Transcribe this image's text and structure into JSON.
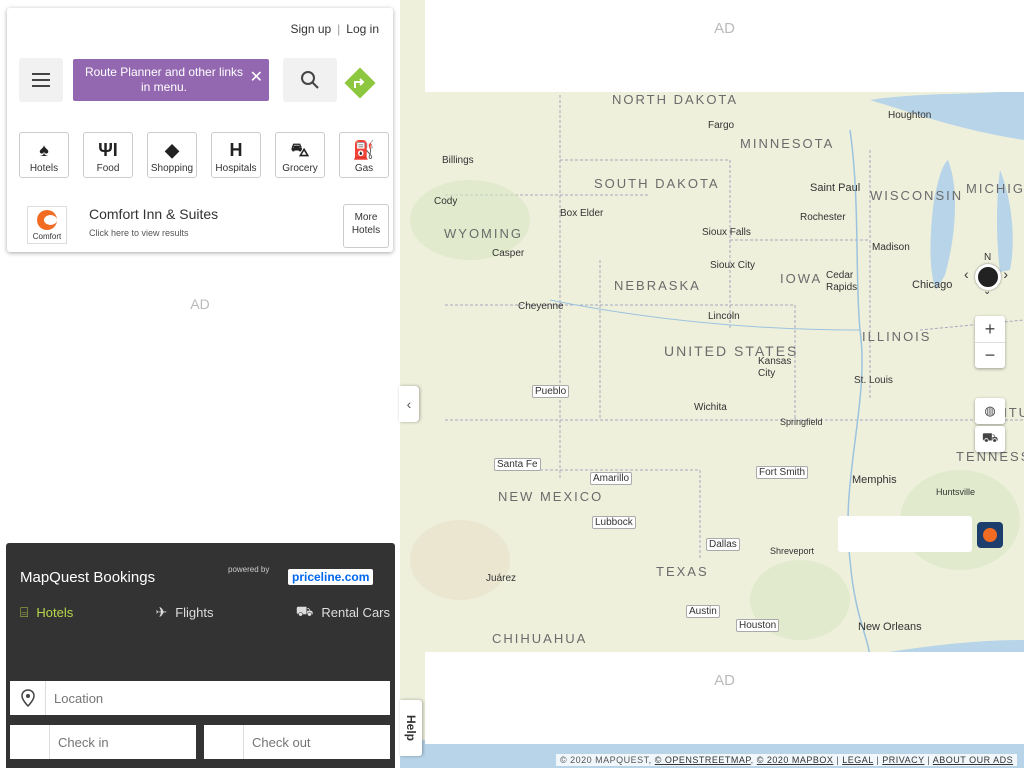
{
  "header": {
    "sign_up": "Sign up",
    "log_in": "Log in",
    "separator": "|"
  },
  "menu": {
    "tooltip": "Route Planner and other links in menu."
  },
  "categories": [
    {
      "label": "Hotels",
      "icon": "lamp-icon"
    },
    {
      "label": "Food",
      "icon": "fork-knife-icon"
    },
    {
      "label": "Shopping",
      "icon": "tag-icon"
    },
    {
      "label": "Hospitals",
      "icon": "hospital-icon"
    },
    {
      "label": "Grocery",
      "icon": "cart-icon"
    },
    {
      "label": "Gas",
      "icon": "gas-pump-icon"
    }
  ],
  "promo": {
    "logo_text": "Comfort",
    "title": "Comfort Inn & Suites",
    "subtitle": "Click here to view results",
    "more_hotels": "More Hotels"
  },
  "ads": {
    "label": "AD"
  },
  "bookings": {
    "title": "MapQuest Bookings",
    "powered_by": "powered by",
    "partner": "priceline.com",
    "tabs": [
      {
        "label": "Hotels",
        "icon": "bed-icon"
      },
      {
        "label": "Flights",
        "icon": "plane-icon"
      },
      {
        "label": "Rental Cars",
        "icon": "car-icon"
      }
    ],
    "location_placeholder": "Location",
    "check_in_placeholder": "Check in",
    "check_out_placeholder": "Check out"
  },
  "map": {
    "states": [
      "NORTH DAKOTA",
      "MINNESOTA",
      "SOUTH DAKOTA",
      "WISCONSIN",
      "WYOMING",
      "NEBRASKA",
      "IOWA",
      "ILLINOIS",
      "UNITED STATES",
      "NEW MEXICO",
      "TEXAS",
      "CHIHUAHUA",
      "KENTUCKY",
      "TENNESSEE",
      "MICHIGAN"
    ],
    "cities": [
      "Fargo",
      "Houghton",
      "Billings",
      "Saint Paul",
      "Cody",
      "Box Elder",
      "Rochester",
      "Sioux Falls",
      "Madison",
      "Casper",
      "Sioux City",
      "Cedar Rapids",
      "Chicago",
      "Cheyenne",
      "Lincoln",
      "Kansas City",
      "St. Louis",
      "Wichita",
      "Springfield",
      "Memphis",
      "Huntsville",
      "Shreveport",
      "Juárez",
      "New Orleans"
    ],
    "links": [
      "Pueblo",
      "Santa Fe",
      "Amarillo",
      "Fort Smith",
      "Lubbock",
      "Dallas",
      "Austin",
      "Houston"
    ],
    "compass_n": "N",
    "zoom_in": "+",
    "zoom_out": "−"
  },
  "help": "Help",
  "attribution": {
    "copy": "© 2020 MAPQUEST,",
    "osm": "© OPENSTREETMAP",
    "mapbox": "© 2020 MAPBOX",
    "legal": "LEGAL",
    "privacy": "PRIVACY",
    "ads": "ABOUT OUR ADS"
  },
  "colors": {
    "accent": "#b8d84a",
    "tooltip": "#9468b1",
    "bookings_bg": "#333333",
    "directions": "#8dc63f"
  }
}
